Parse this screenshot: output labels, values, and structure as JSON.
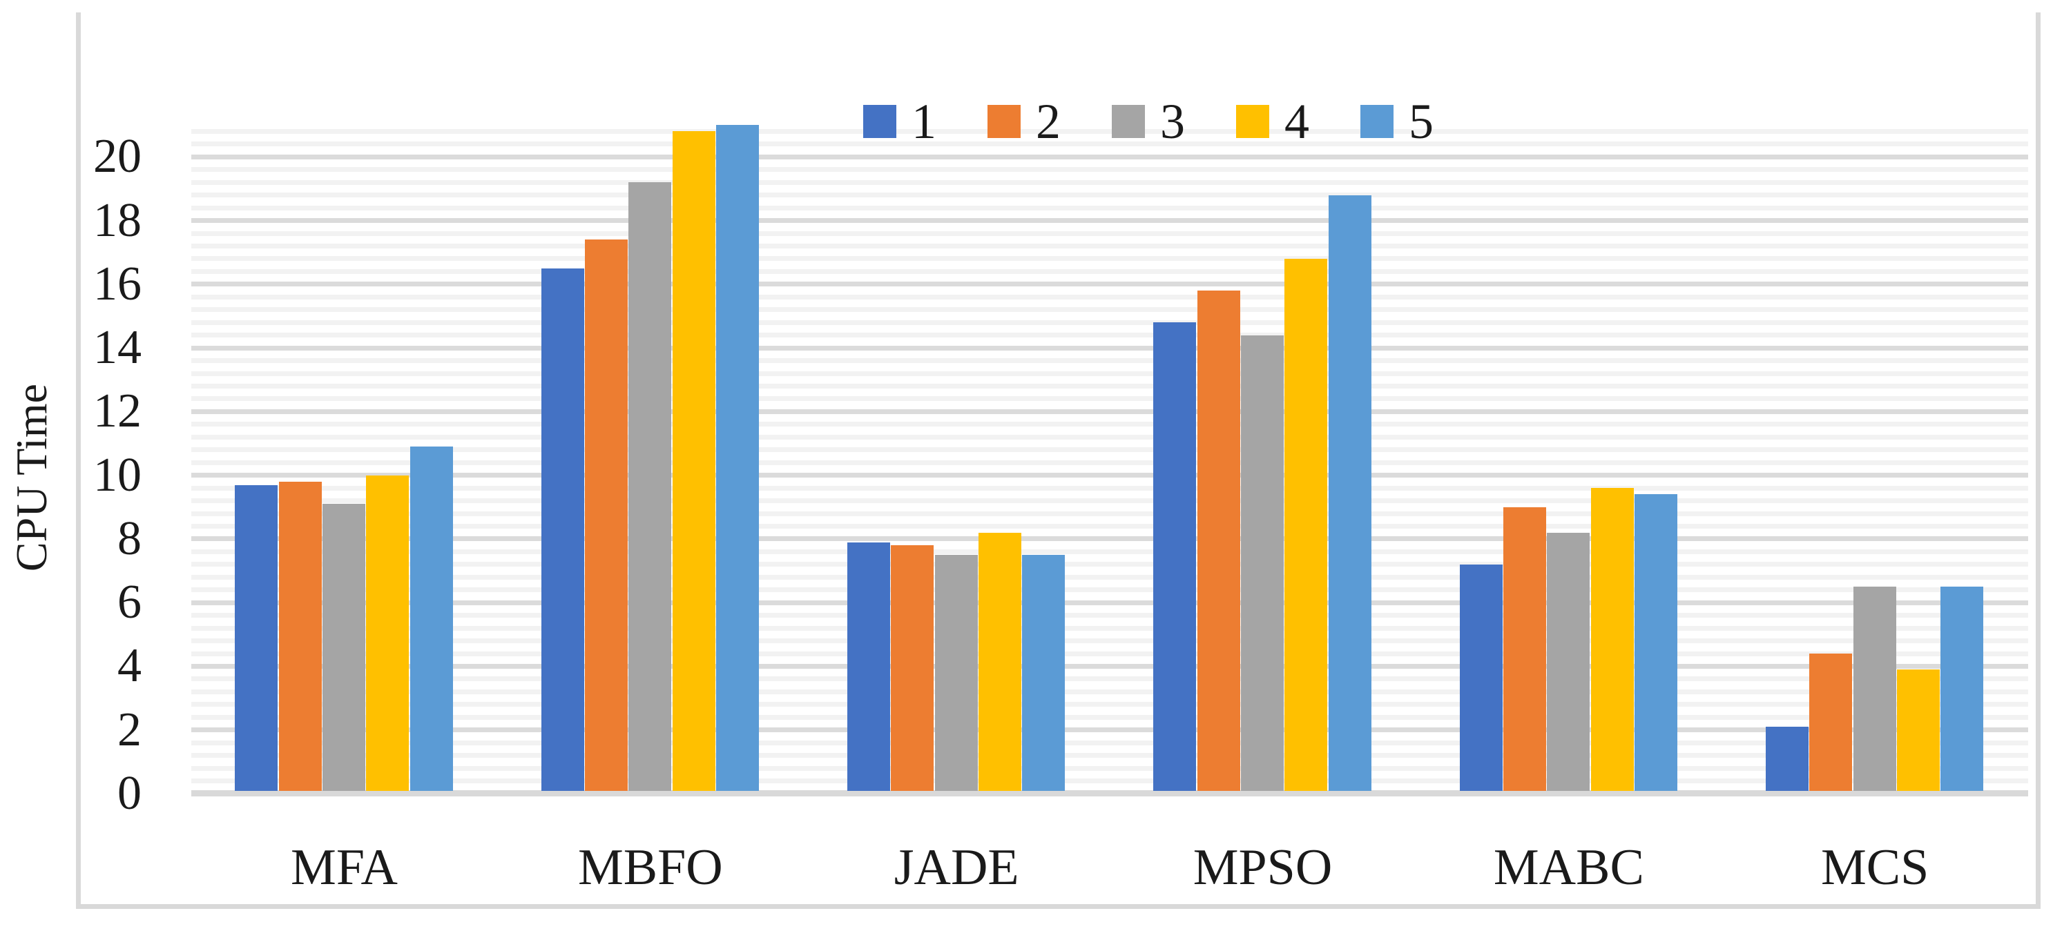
{
  "chart_data": {
    "type": "bar",
    "title": "",
    "xlabel": "",
    "ylabel": "CPU Time",
    "categories": [
      "MFA",
      "MBFO",
      "JADE",
      "MPSO",
      "MABC",
      "MCS"
    ],
    "series": [
      {
        "name": "1",
        "color": "#4472C4",
        "values": [
          9.7,
          16.5,
          7.9,
          14.8,
          7.2,
          2.1
        ]
      },
      {
        "name": "2",
        "color": "#ED7D31",
        "values": [
          9.8,
          17.4,
          7.8,
          15.8,
          9.0,
          4.4
        ]
      },
      {
        "name": "3",
        "color": "#A5A5A5",
        "values": [
          9.1,
          19.2,
          7.5,
          14.4,
          8.2,
          6.5
        ]
      },
      {
        "name": "4",
        "color": "#FFC000",
        "values": [
          10.0,
          20.8,
          8.2,
          16.8,
          9.6,
          3.9
        ]
      },
      {
        "name": "5",
        "color": "#5B9BD5",
        "values": [
          10.9,
          21.0,
          7.5,
          18.8,
          9.4,
          6.5
        ]
      }
    ],
    "y_axis": {
      "min": 0,
      "max": 21.2,
      "major_interval": 2,
      "minor_interval": 0.4,
      "tick_labels": [
        "0",
        "2",
        "4",
        "6",
        "8",
        "10",
        "12",
        "14",
        "16",
        "18",
        "20"
      ]
    },
    "legend": {
      "position": "top-center",
      "labels": [
        "1",
        "2",
        "3",
        "4",
        "5"
      ]
    },
    "grid": {
      "on": true,
      "major_color": "#dbdbdb",
      "minor_color": "#f2f2f2"
    },
    "frame_color": "#d9d9d9",
    "text_color": "#1a1a1a"
  }
}
